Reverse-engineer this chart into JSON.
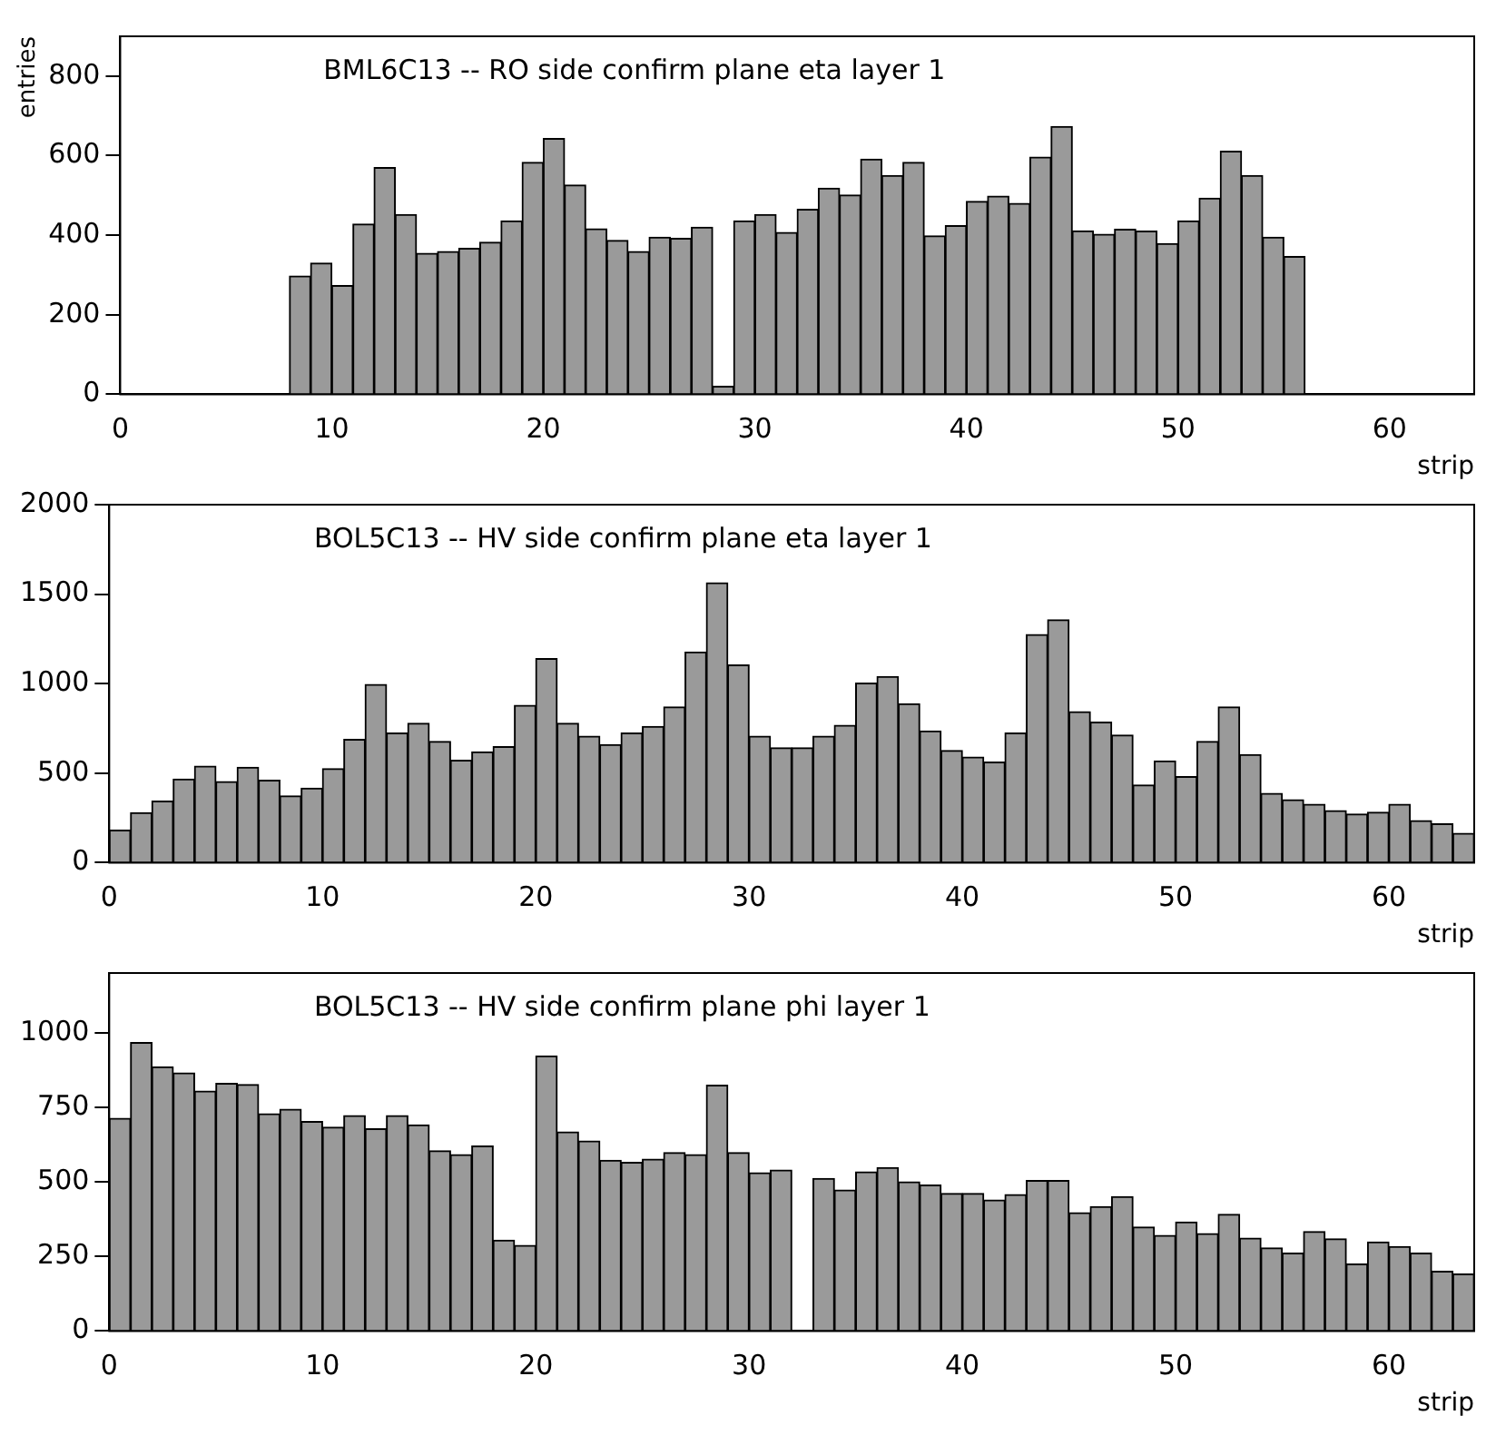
{
  "chart_data": [
    {
      "type": "histogram",
      "title": "BML6C13 -- RO side confirm plane eta layer 1",
      "xlabel": "strip",
      "ylabel": "entries",
      "color": "#9a9a9a",
      "grid": false,
      "bins": [
        0,
        1,
        2,
        3,
        4,
        5,
        6,
        7,
        8,
        9,
        10,
        11,
        12,
        13,
        14,
        15,
        16,
        17,
        18,
        19,
        20,
        21,
        22,
        23,
        24,
        25,
        26,
        27,
        28,
        29,
        30,
        31,
        32,
        33,
        34,
        35,
        36,
        37,
        38,
        39,
        40,
        41,
        42,
        43,
        44,
        45,
        46,
        47,
        48,
        49,
        50,
        51,
        52,
        53,
        54,
        55,
        56,
        57,
        58,
        59,
        60,
        61,
        62,
        63,
        64
      ],
      "values": [
        0,
        0,
        0,
        0,
        0,
        0,
        0,
        0,
        297,
        330,
        273,
        428,
        570,
        452,
        354,
        359,
        367,
        382,
        436,
        583,
        643,
        526,
        416,
        387,
        359,
        395,
        392,
        420,
        20,
        436,
        452,
        407,
        465,
        518,
        501,
        591,
        550,
        583,
        398,
        424,
        485,
        498,
        480,
        596,
        673,
        411,
        402,
        415,
        410,
        379,
        436,
        493,
        611,
        550,
        395,
        346,
        0,
        0,
        0,
        0,
        0,
        0,
        0,
        0
      ],
      "xlim": [
        0,
        64
      ],
      "xticks": [
        0,
        10,
        20,
        30,
        40,
        50,
        60
      ],
      "ylim": [
        0,
        900
      ],
      "yticks": [
        0,
        200,
        400,
        600,
        800
      ]
    },
    {
      "type": "histogram",
      "title": "BOL5C13 -- HV side confirm plane eta layer 1",
      "xlabel": "strip",
      "color": "#9a9a9a",
      "grid": false,
      "bins": [
        0,
        1,
        2,
        3,
        4,
        5,
        6,
        7,
        8,
        9,
        10,
        11,
        12,
        13,
        14,
        15,
        16,
        17,
        18,
        19,
        20,
        21,
        22,
        23,
        24,
        25,
        26,
        27,
        28,
        29,
        30,
        31,
        32,
        33,
        34,
        35,
        36,
        37,
        38,
        39,
        40,
        41,
        42,
        43,
        44,
        45,
        46,
        47,
        48,
        49,
        50,
        51,
        52,
        53,
        54,
        55,
        56,
        57,
        58,
        59,
        60,
        61,
        62,
        63,
        64
      ],
      "values": [
        181,
        279,
        344,
        467,
        539,
        452,
        532,
        460,
        373,
        416,
        525,
        688,
        995,
        724,
        778,
        677,
        572,
        619,
        648,
        879,
        1140,
        778,
        706,
        659,
        724,
        760,
        869,
        1176,
        1563,
        1104,
        706,
        641,
        641,
        706,
        767,
        1003,
        1039,
        887,
        735,
        626,
        590,
        561,
        724,
        1274,
        1357,
        843,
        785,
        713,
        434,
        568,
        481,
        677,
        869,
        604,
        387,
        351,
        326,
        290,
        271,
        282,
        326,
        235,
        217,
        163
      ],
      "xlim": [
        0,
        64
      ],
      "xticks": [
        0,
        10,
        20,
        30,
        40,
        50,
        60
      ],
      "ylim": [
        0,
        2000
      ],
      "yticks": [
        0,
        500,
        1000,
        1500,
        2000
      ]
    },
    {
      "type": "histogram",
      "title": "BOL5C13 -- HV side confirm plane phi layer 1",
      "xlabel": "strip",
      "color": "#9a9a9a",
      "grid": false,
      "bins": [
        0,
        1,
        2,
        3,
        4,
        5,
        6,
        7,
        8,
        9,
        10,
        11,
        12,
        13,
        14,
        15,
        16,
        17,
        18,
        19,
        20,
        21,
        22,
        23,
        24,
        25,
        26,
        27,
        28,
        29,
        30,
        31,
        32,
        33,
        34,
        35,
        36,
        37,
        38,
        39,
        40,
        41,
        42,
        43,
        44,
        45,
        46,
        47,
        48,
        49,
        50,
        51,
        52,
        53,
        54,
        55,
        56,
        57,
        58,
        59,
        60,
        61,
        62,
        63,
        64
      ],
      "values": [
        713,
        967,
        885,
        865,
        804,
        830,
        826,
        728,
        743,
        702,
        683,
        722,
        678,
        722,
        691,
        604,
        591,
        620,
        304,
        287,
        922,
        667,
        637,
        572,
        565,
        576,
        598,
        591,
        824,
        598,
        530,
        539,
        0,
        511,
        472,
        533,
        548,
        500,
        489,
        461,
        461,
        439,
        457,
        504,
        504,
        396,
        417,
        450,
        348,
        320,
        365,
        326,
        391,
        311,
        278,
        261,
        333,
        309,
        224,
        298,
        283,
        261,
        200,
        191
      ],
      "xlim": [
        0,
        64
      ],
      "xticks": [
        0,
        10,
        20,
        30,
        40,
        50,
        60
      ],
      "ylim": [
        0,
        1200
      ],
      "yticks": [
        0,
        250,
        500,
        750,
        1000
      ]
    }
  ]
}
